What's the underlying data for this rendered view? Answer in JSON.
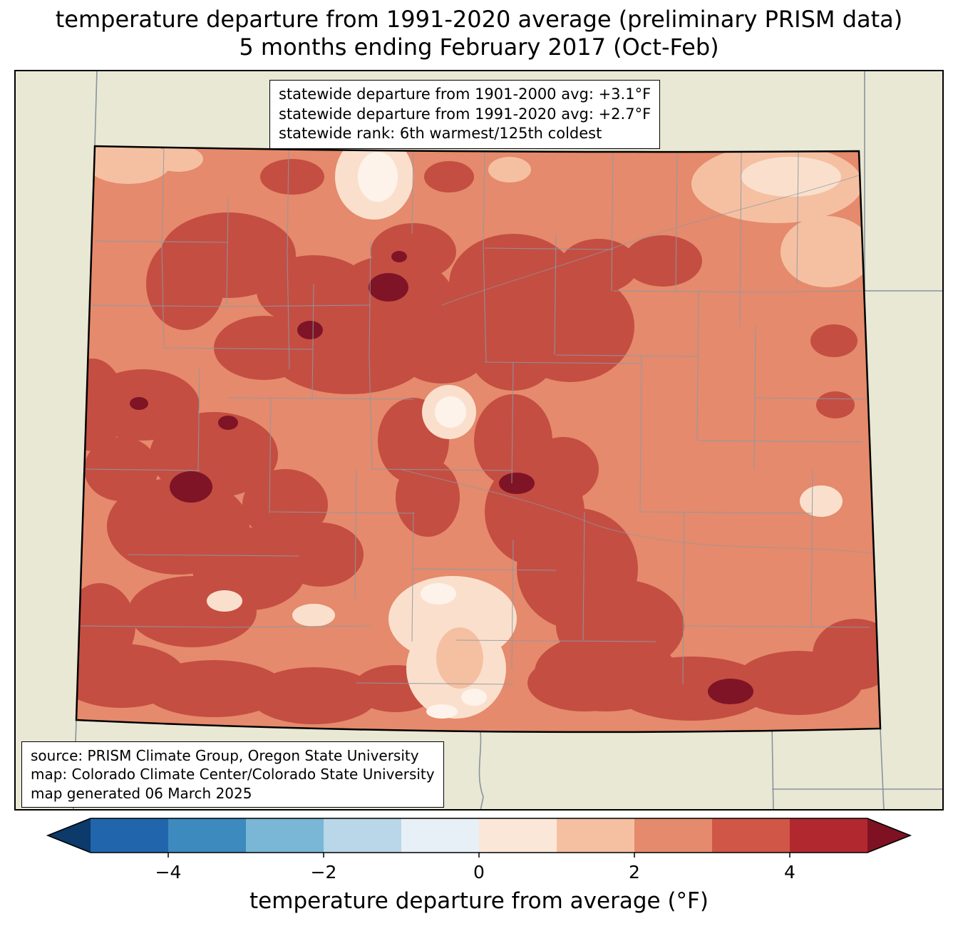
{
  "title": {
    "line1": "temperature departure from 1991-2020 average (preliminary PRISM data)",
    "line2": "5 months ending February 2017 (Oct-Feb)"
  },
  "stats_box": {
    "lines": [
      "statewide departure from 1901-2000 avg: +3.1°F",
      "statewide departure from 1991-2020 avg: +2.7°F",
      "statewide rank: 6th warmest/125th coldest"
    ]
  },
  "source_box": {
    "lines": [
      "source: PRISM Climate Group, Oregon State University",
      "map: Colorado Climate Center/Colorado State University",
      "map generated 06 March 2025"
    ]
  },
  "map_palette": {
    "background": "#e9e8d5",
    "state_line": "#8a949e",
    "county_line": "#8e99a4",
    "river_line": "#8e99a4",
    "border": "#000000",
    "base": "#e58a6c",
    "dark_red": "#c44e42",
    "maroon": "#7e1426",
    "pale_peach": "#f5c0a1",
    "cream": "#fae0cc",
    "white_spot": "#fdf3ea"
  },
  "colorbar": {
    "label": "temperature departure from average (°F)",
    "vmin": -5,
    "vmax": 5,
    "under_color": "#0b3a6b",
    "over_color": "#7f1222",
    "segments": [
      {
        "from": -5,
        "to": -4,
        "color": "#2166ac"
      },
      {
        "from": -4,
        "to": -3,
        "color": "#3c8abe"
      },
      {
        "from": -3,
        "to": -2,
        "color": "#7ab6d6"
      },
      {
        "from": -2,
        "to": -1,
        "color": "#b9d7e8"
      },
      {
        "from": -1,
        "to": 0,
        "color": "#e7f0f6"
      },
      {
        "from": 0,
        "to": 1,
        "color": "#fbe7d8"
      },
      {
        "from": 1,
        "to": 2,
        "color": "#f5c0a1"
      },
      {
        "from": 2,
        "to": 3,
        "color": "#e58a6c"
      },
      {
        "from": 3,
        "to": 4,
        "color": "#d05648"
      },
      {
        "from": 4,
        "to": 5,
        "color": "#b1292f"
      }
    ],
    "ticks": [
      {
        "value": -4,
        "label": "−4"
      },
      {
        "value": -2,
        "label": "−2"
      },
      {
        "value": 0,
        "label": "0"
      },
      {
        "value": 2,
        "label": "2"
      },
      {
        "value": 4,
        "label": "4"
      }
    ]
  }
}
